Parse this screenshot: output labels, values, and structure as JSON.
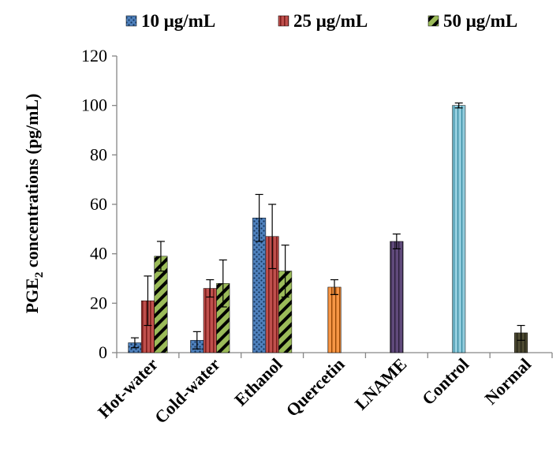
{
  "chart_data": {
    "type": "bar",
    "categories": [
      "Hot-water",
      "Cold-water",
      "Ethanol",
      "Quercetin",
      "LNAME",
      "Control",
      "Normal"
    ],
    "ylabel": {
      "main": "PGE",
      "sub": "2",
      "rest": " concentrations (pg/mL)"
    },
    "ylim": [
      0,
      120
    ],
    "yticks": [
      0,
      20,
      40,
      60,
      80,
      100,
      120
    ],
    "grid": false,
    "legend_position": "top",
    "legend": [
      "10 μg/mL",
      "25 μg/mL",
      "50 μg/mL"
    ],
    "series": [
      {
        "name": "10 μg/mL",
        "color": "#4f81bd",
        "pattern": "dots",
        "values": [
          4,
          5,
          54.5,
          null,
          null,
          null,
          null
        ],
        "errors": [
          2,
          3.5,
          9.5,
          null,
          null,
          null,
          null
        ]
      },
      {
        "name": "25 μg/mL",
        "color": "#c0504d",
        "pattern": "vertical-lines",
        "values": [
          21,
          26,
          47,
          null,
          null,
          null,
          null
        ],
        "errors": [
          10,
          3.5,
          13,
          null,
          null,
          null,
          null
        ]
      },
      {
        "name": "50 μg/mL",
        "color": "#9bbb59",
        "pattern": "diagonal-stripes",
        "values": [
          39,
          28,
          33,
          null,
          null,
          null,
          null
        ],
        "errors": [
          6,
          9.5,
          10.5,
          null,
          null,
          null,
          null
        ]
      }
    ],
    "single_bars": [
      {
        "category": "Quercetin",
        "value": 26.5,
        "error": 3,
        "color": "#f79646"
      },
      {
        "category": "LNAME",
        "value": 45,
        "error": 3,
        "color": "#604a7b"
      },
      {
        "category": "Control",
        "value": 100,
        "error": 1,
        "color": "#93cddd"
      },
      {
        "category": "Normal",
        "value": 8,
        "error": 3,
        "color": "#4d4a32"
      }
    ]
  }
}
